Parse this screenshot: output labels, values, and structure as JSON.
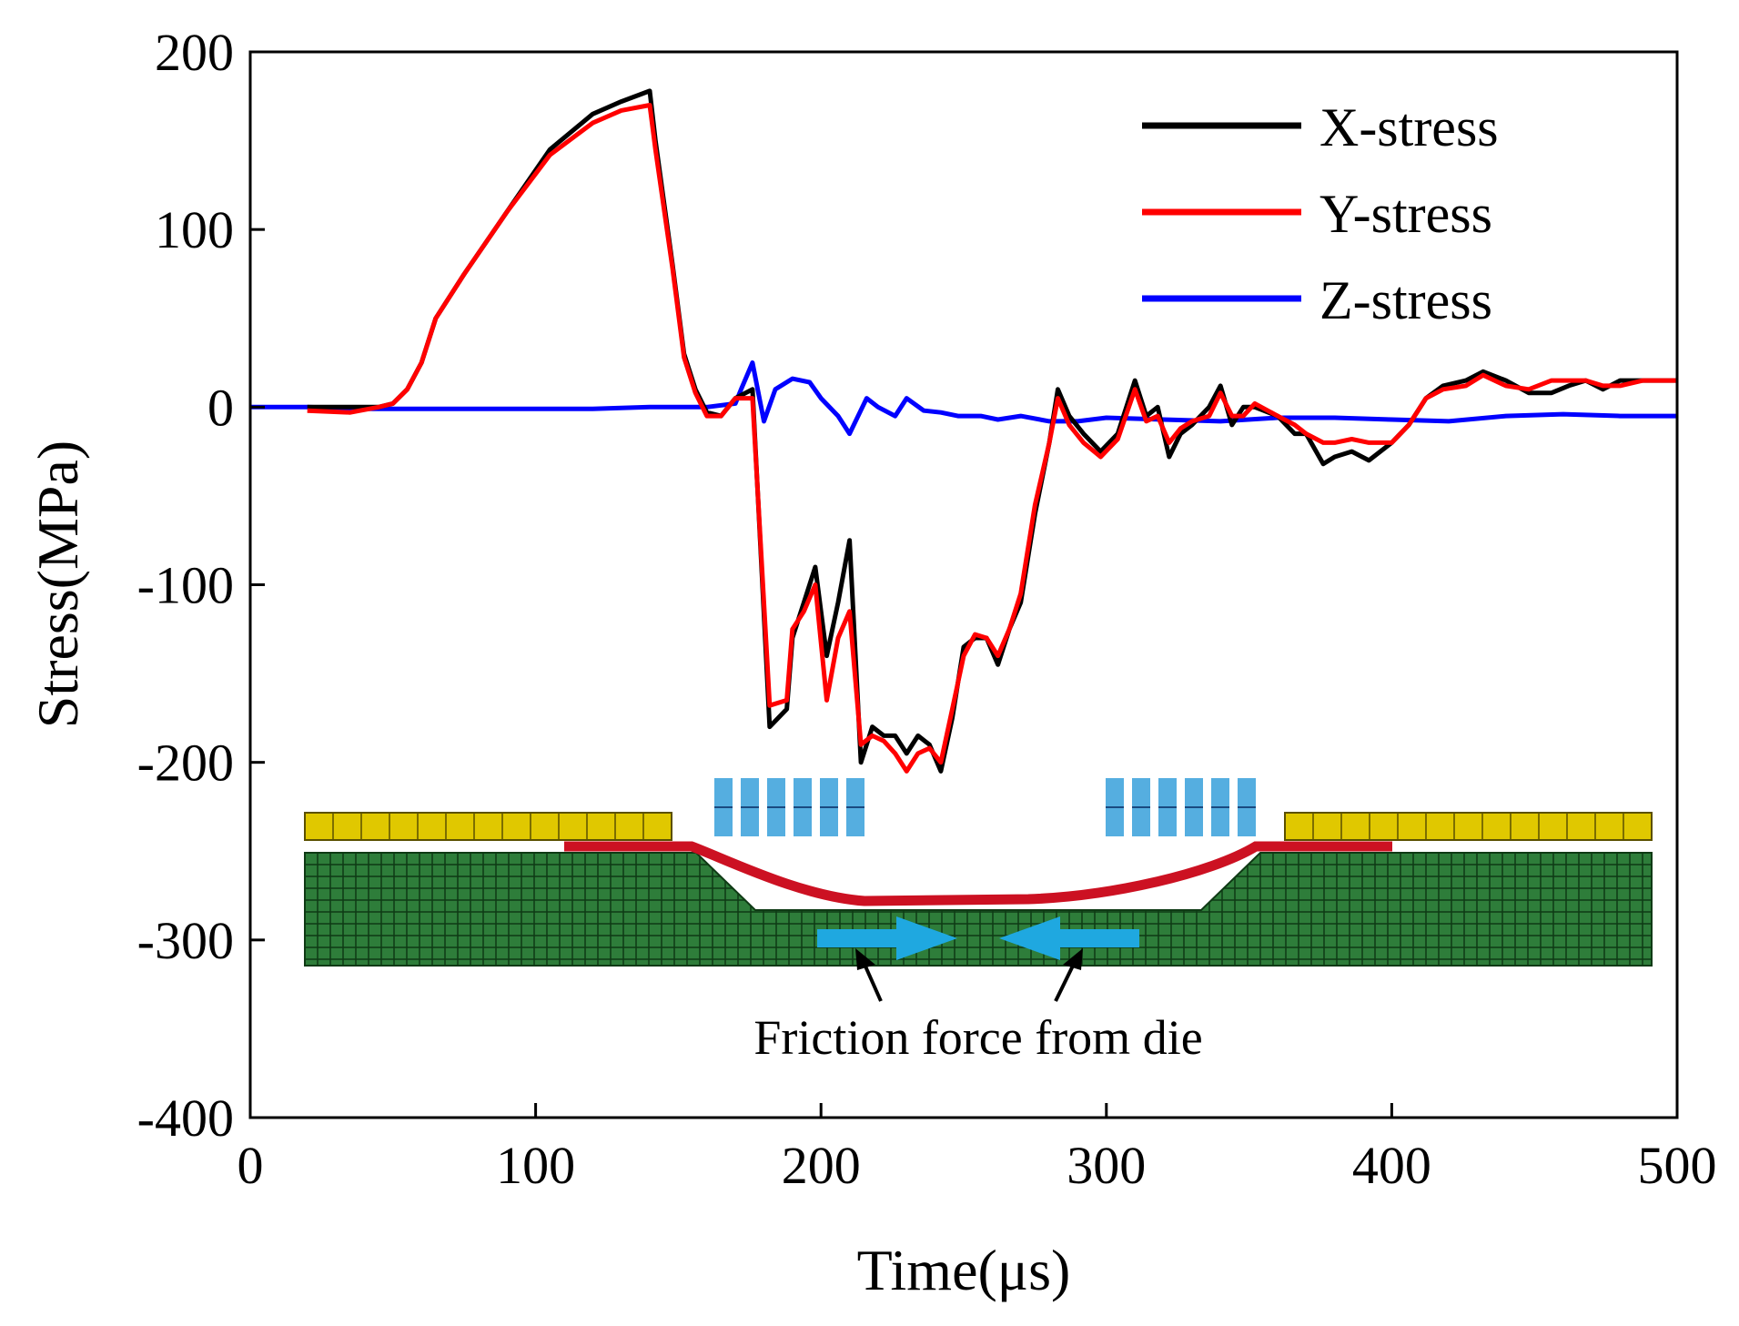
{
  "chart_data": {
    "type": "line",
    "title": "",
    "xlabel": "Time(μs)",
    "ylabel": "Stress(MPa)",
    "xlim": [
      0,
      500
    ],
    "ylim": [
      -400,
      200
    ],
    "xticks": [
      0,
      100,
      200,
      300,
      400,
      500
    ],
    "yticks": [
      200,
      100,
      0,
      -100,
      -200,
      -300,
      -400
    ],
    "xtick_labels": [
      "0",
      "100",
      "200",
      "300",
      "400",
      "500"
    ],
    "ytick_labels": [
      "200",
      "100",
      "0",
      "-100",
      "-200",
      "-300",
      "-400"
    ],
    "grid": false,
    "legend_position": "top-right",
    "series": [
      {
        "name": "X-stress",
        "color": "#000000",
        "x": [
          20,
          35,
          45,
          50,
          55,
          60,
          65,
          75,
          90,
          105,
          120,
          130,
          140,
          142,
          148,
          152,
          156,
          160,
          165,
          170,
          176,
          182,
          188,
          190,
          194,
          198,
          202,
          206,
          210,
          214,
          218,
          222,
          226,
          230,
          234,
          238,
          242,
          246,
          250,
          254,
          258,
          262,
          266,
          270,
          275,
          280,
          283,
          287,
          292,
          298,
          304,
          310,
          314,
          318,
          322,
          326,
          330,
          336,
          340,
          344,
          348,
          352,
          360,
          366,
          370,
          376,
          380,
          386,
          392,
          400,
          406,
          412,
          418,
          426,
          432,
          440,
          448,
          456,
          462,
          468,
          474,
          480,
          488,
          494,
          500
        ],
        "y": [
          0,
          0,
          0,
          2,
          10,
          25,
          50,
          75,
          110,
          145,
          165,
          172,
          178,
          150,
          80,
          30,
          10,
          -3,
          -5,
          5,
          10,
          -180,
          -170,
          -130,
          -110,
          -90,
          -140,
          -110,
          -75,
          -200,
          -180,
          -185,
          -185,
          -195,
          -185,
          -190,
          -205,
          -175,
          -135,
          -130,
          -130,
          -145,
          -125,
          -110,
          -60,
          -20,
          10,
          -5,
          -15,
          -25,
          -15,
          15,
          -5,
          0,
          -28,
          -15,
          -10,
          0,
          12,
          -10,
          0,
          0,
          -5,
          -15,
          -15,
          -32,
          -28,
          -25,
          -30,
          -20,
          -10,
          5,
          12,
          15,
          20,
          15,
          8,
          8,
          12,
          15,
          10,
          15,
          15,
          15,
          15
        ]
      },
      {
        "name": "Y-stress",
        "color": "#ff0000",
        "x": [
          20,
          35,
          45,
          50,
          55,
          60,
          65,
          75,
          90,
          105,
          120,
          130,
          140,
          142,
          148,
          152,
          156,
          160,
          165,
          170,
          176,
          182,
          188,
          190,
          194,
          198,
          202,
          206,
          210,
          214,
          218,
          222,
          226,
          230,
          234,
          238,
          242,
          246,
          250,
          254,
          258,
          262,
          266,
          270,
          275,
          280,
          283,
          287,
          292,
          298,
          304,
          310,
          314,
          318,
          322,
          326,
          330,
          336,
          340,
          344,
          348,
          352,
          360,
          366,
          370,
          376,
          380,
          386,
          392,
          400,
          406,
          412,
          418,
          426,
          432,
          440,
          448,
          456,
          462,
          468,
          474,
          480,
          488,
          494,
          500
        ],
        "y": [
          -2,
          -3,
          0,
          2,
          10,
          25,
          50,
          75,
          110,
          142,
          160,
          167,
          170,
          145,
          78,
          28,
          8,
          -5,
          -5,
          5,
          5,
          -168,
          -165,
          -125,
          -115,
          -100,
          -165,
          -130,
          -115,
          -190,
          -185,
          -188,
          -195,
          -205,
          -195,
          -192,
          -200,
          -170,
          -140,
          -128,
          -130,
          -140,
          -125,
          -105,
          -55,
          -20,
          5,
          -10,
          -20,
          -28,
          -18,
          10,
          -8,
          -5,
          -20,
          -12,
          -8,
          -5,
          8,
          -5,
          -5,
          2,
          -5,
          -10,
          -15,
          -20,
          -20,
          -18,
          -20,
          -20,
          -10,
          5,
          10,
          12,
          18,
          12,
          10,
          15,
          15,
          15,
          12,
          12,
          15,
          15,
          15
        ]
      },
      {
        "name": "Z-stress",
        "color": "#0000ff",
        "x": [
          0,
          20,
          40,
          60,
          80,
          100,
          120,
          140,
          150,
          160,
          170,
          172,
          176,
          180,
          184,
          190,
          196,
          200,
          206,
          210,
          216,
          220,
          226,
          230,
          236,
          242,
          248,
          256,
          262,
          270,
          280,
          290,
          300,
          320,
          340,
          360,
          380,
          400,
          420,
          440,
          460,
          480,
          500
        ],
        "y": [
          0,
          0,
          -1,
          -1,
          -1,
          -1,
          -1,
          0,
          0,
          0,
          2,
          10,
          25,
          -8,
          10,
          16,
          14,
          5,
          -5,
          -15,
          5,
          0,
          -5,
          5,
          -2,
          -3,
          -5,
          -5,
          -7,
          -5,
          -8,
          -8,
          -6,
          -7,
          -8,
          -6,
          -6,
          -7,
          -8,
          -5,
          -4,
          -5,
          -5
        ]
      }
    ],
    "inset": {
      "description_label": "Friction force from die",
      "colors": {
        "die": "#2e7d3a",
        "die_mesh": "#0f3a15",
        "plate": "#e0c800",
        "plate_mesh": "#5b5000",
        "workpiece": "#cc1122",
        "arrow": "#1fa8e0",
        "block": "#55aee0"
      }
    }
  }
}
